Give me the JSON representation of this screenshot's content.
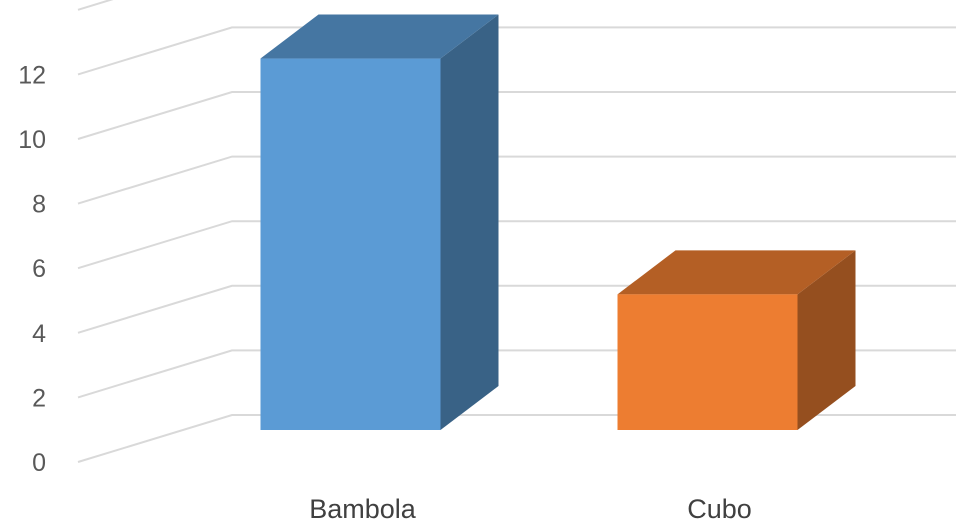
{
  "chart_data": {
    "type": "bar",
    "style": "3d-column",
    "categories": [
      "Bambola",
      "Cubo"
    ],
    "values": [
      11.5,
      4.2
    ],
    "colors": [
      "#5b9bd5",
      "#ed7d31"
    ],
    "ylim": [
      0,
      12
    ],
    "yticks": [
      0,
      2,
      4,
      6,
      8,
      10,
      12
    ],
    "title": "",
    "xlabel": "",
    "ylabel": "",
    "grid": true,
    "legend": "none"
  }
}
